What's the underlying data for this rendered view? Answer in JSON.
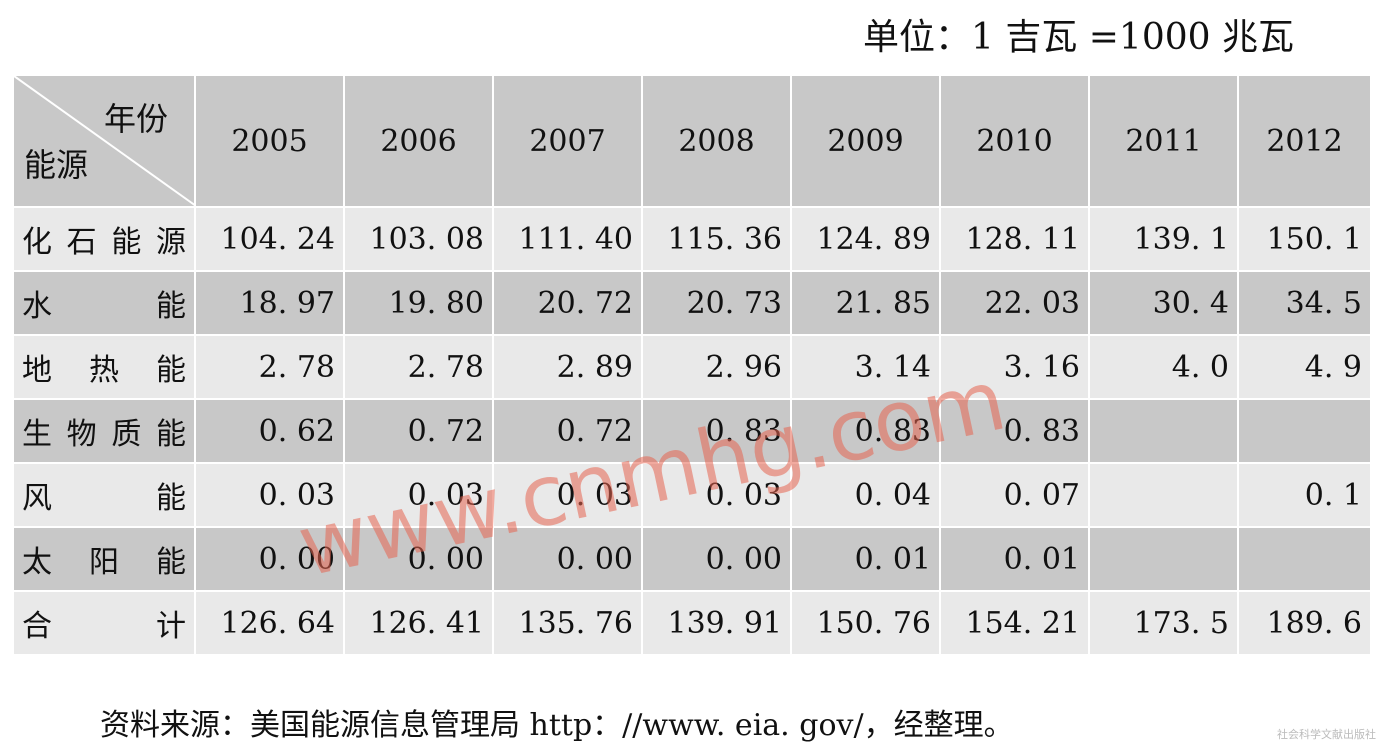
{
  "unit_note": "单位：1 吉瓦 =1000 兆瓦",
  "table": {
    "corner_top": "年份",
    "corner_bottom": "能源",
    "years": [
      "2005",
      "2006",
      "2007",
      "2008",
      "2009",
      "2010",
      "2011",
      "2012"
    ],
    "rows": [
      {
        "label": "化石能源",
        "values": [
          "104. 24",
          "103. 08",
          "111. 40",
          "115. 36",
          "124. 89",
          "128. 11",
          "139. 1",
          "150. 1"
        ]
      },
      {
        "label": "水能",
        "values": [
          "18. 97",
          "19. 80",
          "20. 72",
          "20. 73",
          "21. 85",
          "22. 03",
          "30. 4",
          "34. 5"
        ]
      },
      {
        "label": "地热能",
        "values": [
          "2. 78",
          "2. 78",
          "2. 89",
          "2. 96",
          "3. 14",
          "3. 16",
          "4. 0",
          "4. 9"
        ]
      },
      {
        "label": "生物质能",
        "values": [
          "0. 62",
          "0. 72",
          "0. 72",
          "0. 83",
          "0. 83",
          "0. 83",
          "",
          ""
        ]
      },
      {
        "label": "风能",
        "values": [
          "0. 03",
          "0. 03",
          "0. 03",
          "0. 03",
          "0. 04",
          "0. 07",
          "",
          "0. 1"
        ]
      },
      {
        "label": "太阳能",
        "values": [
          "0. 00",
          "0. 00",
          "0. 00",
          "0. 00",
          "0. 01",
          "0. 01",
          "",
          ""
        ]
      },
      {
        "label": "合计",
        "values": [
          "126. 64",
          "126. 41",
          "135. 76",
          "139. 91",
          "150. 76",
          "154. 21",
          "173. 5",
          "189. 6"
        ]
      }
    ]
  },
  "source_note": "资料来源：美国能源信息管理局 http：//www. eia. gov/，经整理。",
  "watermark": "www.cnmhg.com",
  "corner_mark": "社会科学文献出版社"
}
